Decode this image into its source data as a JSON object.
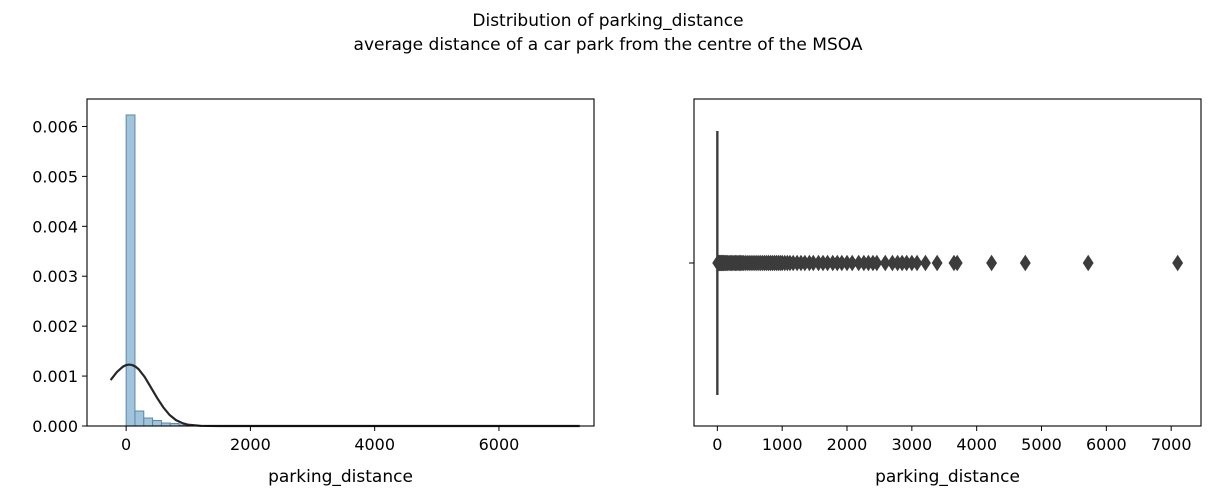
{
  "figure": {
    "title_line1": "Distribution of parking_distance",
    "title_line2": "average distance of a car park from the centre of the MSOA"
  },
  "chart_data": [
    {
      "type": "histogram",
      "xlabel": "parking_distance",
      "ylabel": "",
      "xlim": [
        -630,
        7530
      ],
      "ylim": [
        0,
        0.00655
      ],
      "xticks": [
        0,
        2000,
        4000,
        6000
      ],
      "xtick_labels": [
        "0",
        "2000",
        "4000",
        "6000"
      ],
      "yticks": [
        0.0,
        0.001,
        0.002,
        0.003,
        0.004,
        0.005,
        0.006
      ],
      "ytick_labels": [
        "0.000",
        "0.001",
        "0.002",
        "0.003",
        "0.004",
        "0.005",
        "0.006"
      ],
      "bin_width": 142,
      "bin_start": 0,
      "bin_values": [
        0.00623,
        0.0003,
        0.00016,
        0.00011,
        6e-05,
        5e-05,
        2e-05,
        1e-05,
        5e-06,
        4e-06,
        3e-06,
        2e-06
      ],
      "kde": {
        "x": [
          -250,
          -150,
          -50,
          0,
          50,
          100,
          150,
          200,
          300,
          400,
          500,
          600,
          700,
          800,
          900,
          1000,
          1200,
          1500,
          2000,
          3000,
          5000,
          7300
        ],
        "y": [
          0.00092,
          0.00108,
          0.00119,
          0.00122,
          0.00123,
          0.00122,
          0.00119,
          0.00114,
          0.00098,
          0.00077,
          0.00056,
          0.00037,
          0.00022,
          0.00012,
          6e-05,
          2.5e-05,
          4e-06,
          5e-07,
          0,
          0,
          0,
          0
        ]
      },
      "colors": {
        "bar_fill": "#a0c4dc",
        "bar_edge": "#5b8aa8",
        "kde_line": "#262626"
      },
      "grid": false
    },
    {
      "type": "boxplot",
      "orientation": "horizontal",
      "xlabel": "parking_distance",
      "xlim": [
        -360,
        7460
      ],
      "xticks": [
        0,
        1000,
        2000,
        3000,
        4000,
        5000,
        6000,
        7000
      ],
      "xtick_labels": [
        "0",
        "1000",
        "2000",
        "3000",
        "4000",
        "5000",
        "6000",
        "7000"
      ],
      "box": {
        "q1": 0,
        "median": 0,
        "q3": 0,
        "whisker_low": 0,
        "whisker_high": 0
      },
      "outliers": [
        5,
        12,
        20,
        30,
        40,
        50,
        60,
        70,
        80,
        90,
        100,
        115,
        130,
        145,
        160,
        180,
        200,
        220,
        240,
        260,
        280,
        300,
        320,
        340,
        360,
        380,
        400,
        430,
        460,
        490,
        520,
        550,
        580,
        610,
        640,
        670,
        700,
        730,
        760,
        790,
        820,
        850,
        880,
        910,
        940,
        970,
        1000,
        1040,
        1080,
        1120,
        1170,
        1230,
        1290,
        1350,
        1420,
        1480,
        1560,
        1630,
        1700,
        1780,
        1850,
        1920,
        2000,
        2080,
        2180,
        2260,
        2330,
        2400,
        2460,
        2590,
        2700,
        2780,
        2850,
        2920,
        3000,
        3080,
        3210,
        3390,
        3650,
        3700,
        4230,
        4750,
        5720,
        7100
      ],
      "colors": {
        "line": "#3c3c3c",
        "marker": "#3c3c3c"
      },
      "grid": false
    }
  ]
}
